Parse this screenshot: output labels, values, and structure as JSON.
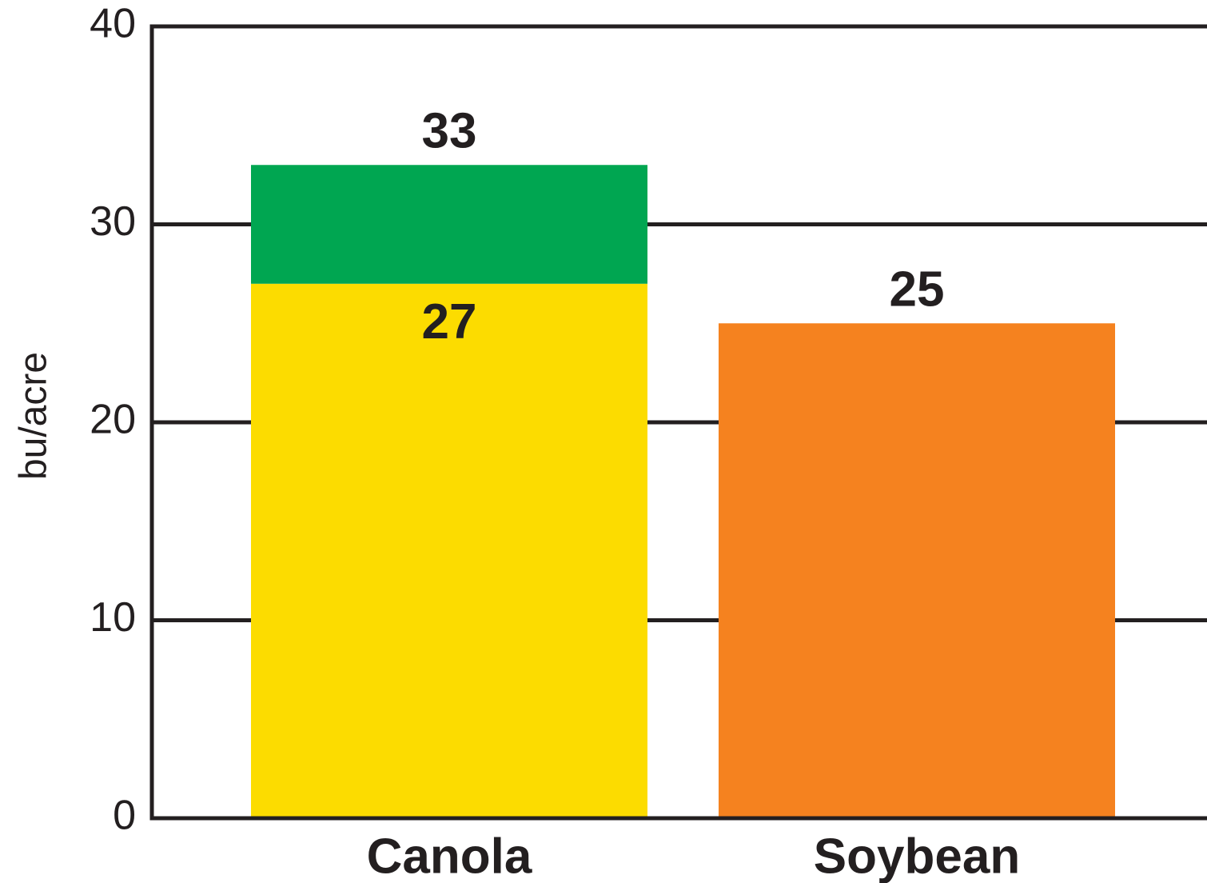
{
  "chart_data": {
    "type": "stacked-bar",
    "y_label": "bu/acre",
    "categories": [
      "Canola",
      "Soybean"
    ],
    "series": [
      {
        "colors": [
          "#fcdc00",
          "#f5821f"
        ],
        "values": [
          27,
          25
        ]
      },
      {
        "color": "#00a651",
        "values": [
          6,
          null
        ]
      }
    ],
    "totals": [
      33,
      null
    ],
    "ylim": [
      0,
      40
    ],
    "yticks": [
      0,
      10,
      20,
      30,
      40
    ],
    "grid": true
  }
}
